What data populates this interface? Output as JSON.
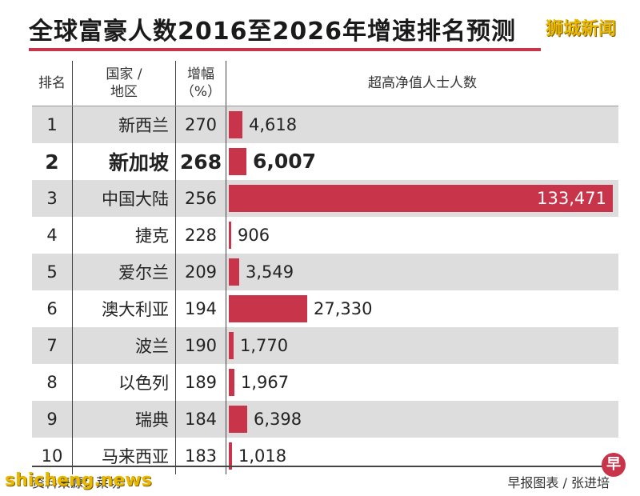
{
  "title": "全球富豪人数2016至2026年增速排名预测",
  "watermark_top": "狮城新闻",
  "headers": {
    "rank": "排名",
    "country_line1": "国家 /",
    "country_line2": "地区",
    "growth_line1": "增幅",
    "growth_line2": "（%）",
    "count": "超高净值人士人数"
  },
  "rows": [
    {
      "rank": "1",
      "country": "新西兰",
      "growth": "270",
      "count_label": "4,618"
    },
    {
      "rank": "2",
      "country": "新加坡",
      "growth": "268",
      "count_label": "6,007"
    },
    {
      "rank": "3",
      "country": "中国大陆",
      "growth": "256",
      "count_label": "133,471"
    },
    {
      "rank": "4",
      "country": "捷克",
      "growth": "228",
      "count_label": "906"
    },
    {
      "rank": "5",
      "country": "爱尔兰",
      "growth": "209",
      "count_label": "3,549"
    },
    {
      "rank": "6",
      "country": "澳大利亚",
      "growth": "194",
      "count_label": "27,330"
    },
    {
      "rank": "7",
      "country": "波兰",
      "growth": "190",
      "count_label": "1,770"
    },
    {
      "rank": "8",
      "country": "以色列",
      "growth": "189",
      "count_label": "1,967"
    },
    {
      "rank": "9",
      "country": "瑞典",
      "growth": "184",
      "count_label": "6,398"
    },
    {
      "rank": "10",
      "country": "马来西亚",
      "growth": "183",
      "count_label": "1,018"
    }
  ],
  "footer": {
    "source": "资料来源：莱坊",
    "credit": "早报图表 / 张进培",
    "watermark_bottom": "shicheng.news"
  },
  "colors": {
    "bar": "#c8344a",
    "stripe": "#dddddd"
  },
  "chart_data": {
    "type": "bar",
    "title": "全球富豪人数2016至2026年增速排名预测",
    "categories": [
      "新西兰",
      "新加坡",
      "中国大陆",
      "捷克",
      "爱尔兰",
      "澳大利亚",
      "波兰",
      "以色列",
      "瑞典",
      "马来西亚"
    ],
    "series": [
      {
        "name": "超高净值人士人数",
        "values": [
          4618,
          6007,
          133471,
          906,
          3549,
          27330,
          1770,
          1967,
          6398,
          1018
        ]
      }
    ],
    "growth_percent": [
      270,
      268,
      256,
      228,
      209,
      194,
      190,
      189,
      184,
      183
    ],
    "ranks": [
      1,
      2,
      3,
      4,
      5,
      6,
      7,
      8,
      9,
      10
    ],
    "highlight_index": 1,
    "xmax": 133471,
    "orientation": "horizontal"
  }
}
